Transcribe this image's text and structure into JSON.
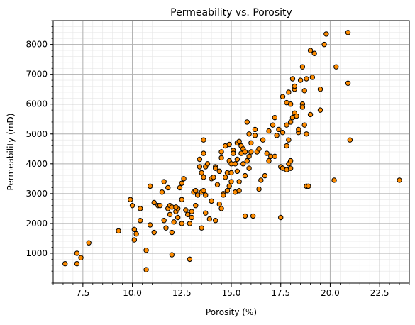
{
  "chart_data": {
    "type": "scatter",
    "title": "Permeability vs. Porosity",
    "xlabel": "Porosity (%)",
    "ylabel": "Permeability (mD)",
    "xlim": [
      6.0,
      24.0
    ],
    "ylim": [
      0,
      8800
    ],
    "xticks": [
      7.5,
      10.0,
      12.5,
      15.0,
      17.5,
      20.0,
      22.5
    ],
    "xtick_labels": [
      "7.5",
      "10.0",
      "12.5",
      "15.0",
      "17.5",
      "20.0",
      "22.5"
    ],
    "yticks": [
      1000,
      2000,
      3000,
      4000,
      5000,
      6000,
      7000,
      8000
    ],
    "ytick_labels": [
      "1000",
      "2000",
      "3000",
      "4000",
      "5000",
      "6000",
      "7000",
      "8000"
    ],
    "grid": true,
    "minor_grid": true,
    "marker_color": "#ff8c00",
    "marker_edge_color": "#000000",
    "series": [
      {
        "points": [
          [
            6.6,
            650
          ],
          [
            7.2,
            650
          ],
          [
            7.2,
            1000
          ],
          [
            7.4,
            850
          ],
          [
            7.8,
            1350
          ],
          [
            9.3,
            1750
          ],
          [
            9.9,
            2800
          ],
          [
            10.0,
            2600
          ],
          [
            10.1,
            1800
          ],
          [
            10.1,
            1450
          ],
          [
            10.2,
            1650
          ],
          [
            10.4,
            2500
          ],
          [
            10.4,
            2100
          ],
          [
            10.7,
            1100
          ],
          [
            10.7,
            450
          ],
          [
            10.9,
            3250
          ],
          [
            10.9,
            1950
          ],
          [
            11.1,
            1700
          ],
          [
            11.1,
            2700
          ],
          [
            11.3,
            2600
          ],
          [
            11.5,
            3050
          ],
          [
            11.6,
            3400
          ],
          [
            11.6,
            2100
          ],
          [
            11.7,
            1850
          ],
          [
            11.8,
            2500
          ],
          [
            11.8,
            3200
          ],
          [
            11.9,
            2600
          ],
          [
            11.9,
            2300
          ],
          [
            12.0,
            2550
          ],
          [
            12.0,
            1700
          ],
          [
            12.0,
            950
          ],
          [
            12.1,
            2050
          ],
          [
            12.2,
            2400
          ],
          [
            12.3,
            2500
          ],
          [
            12.3,
            2200
          ],
          [
            12.4,
            3200
          ],
          [
            12.5,
            3350
          ],
          [
            12.5,
            2000
          ],
          [
            12.5,
            2800
          ],
          [
            12.6,
            3500
          ],
          [
            12.7,
            2450
          ],
          [
            12.8,
            2300
          ],
          [
            12.9,
            2000
          ],
          [
            12.9,
            800
          ],
          [
            13.0,
            2400
          ],
          [
            13.0,
            2200
          ],
          [
            13.1,
            3050
          ],
          [
            13.2,
            3100
          ],
          [
            13.2,
            2600
          ],
          [
            13.3,
            2950
          ],
          [
            13.4,
            3900
          ],
          [
            13.4,
            4150
          ],
          [
            13.5,
            3700
          ],
          [
            13.5,
            3050
          ],
          [
            13.5,
            1850
          ],
          [
            13.6,
            4800
          ],
          [
            13.6,
            3550
          ],
          [
            13.6,
            3100
          ],
          [
            13.6,
            4350
          ],
          [
            13.7,
            2350
          ],
          [
            13.7,
            3900
          ],
          [
            13.8,
            4000
          ],
          [
            13.9,
            2150
          ],
          [
            14.0,
            3500
          ],
          [
            14.0,
            2750
          ],
          [
            14.1,
            3550
          ],
          [
            14.2,
            3900
          ],
          [
            14.2,
            2100
          ],
          [
            14.3,
            3300
          ],
          [
            14.4,
            2650
          ],
          [
            14.4,
            3750
          ],
          [
            14.5,
            4200
          ],
          [
            14.5,
            4400
          ],
          [
            14.5,
            2500
          ],
          [
            14.6,
            3000
          ],
          [
            14.6,
            2950
          ],
          [
            14.7,
            3550
          ],
          [
            14.7,
            4600
          ],
          [
            14.8,
            3700
          ],
          [
            14.8,
            3100
          ],
          [
            14.9,
            4650
          ],
          [
            14.9,
            4100
          ],
          [
            15.0,
            4000
          ],
          [
            15.0,
            3700
          ],
          [
            15.0,
            3400
          ],
          [
            15.1,
            4450
          ],
          [
            15.1,
            4350
          ],
          [
            15.2,
            4000
          ],
          [
            15.2,
            3050
          ],
          [
            15.3,
            4700
          ],
          [
            15.3,
            4150
          ],
          [
            15.3,
            3750
          ],
          [
            15.4,
            3100
          ],
          [
            15.4,
            3400
          ],
          [
            15.5,
            4350
          ],
          [
            15.5,
            4600
          ],
          [
            15.6,
            4500
          ],
          [
            15.6,
            4000
          ],
          [
            15.7,
            4400
          ],
          [
            15.7,
            3600
          ],
          [
            15.7,
            2250
          ],
          [
            15.8,
            5400
          ],
          [
            15.8,
            4100
          ],
          [
            15.9,
            4250
          ],
          [
            15.9,
            3850
          ],
          [
            16.0,
            4700
          ],
          [
            16.0,
            4400
          ],
          [
            16.1,
            2250
          ],
          [
            16.2,
            5150
          ],
          [
            16.2,
            4950
          ],
          [
            16.3,
            4400
          ],
          [
            16.4,
            4500
          ],
          [
            16.5,
            3450
          ],
          [
            16.6,
            4800
          ],
          [
            16.7,
            3600
          ],
          [
            16.8,
            4350
          ],
          [
            16.9,
            4100
          ],
          [
            17.0,
            4250
          ],
          [
            17.1,
            5300
          ],
          [
            17.2,
            5550
          ],
          [
            17.3,
            4950
          ],
          [
            17.4,
            5150
          ],
          [
            17.5,
            3900
          ],
          [
            17.6,
            3850
          ],
          [
            17.8,
            4600
          ],
          [
            17.8,
            3800
          ],
          [
            17.9,
            4800
          ],
          [
            17.9,
            4000
          ],
          [
            18.0,
            3850
          ],
          [
            18.0,
            4100
          ],
          [
            18.1,
            5550
          ],
          [
            18.2,
            5700
          ],
          [
            18.2,
            6500
          ],
          [
            18.3,
            5600
          ],
          [
            18.4,
            5050
          ],
          [
            18.4,
            5150
          ],
          [
            18.5,
            6800
          ],
          [
            18.6,
            6000
          ],
          [
            18.6,
            5900
          ],
          [
            18.6,
            7250
          ],
          [
            18.7,
            5300
          ],
          [
            18.7,
            6450
          ],
          [
            18.8,
            6850
          ],
          [
            18.8,
            5000
          ],
          [
            18.8,
            3250
          ],
          [
            18.9,
            3250
          ],
          [
            19.0,
            5650
          ],
          [
            19.0,
            7800
          ],
          [
            19.1,
            6900
          ],
          [
            19.2,
            7700
          ],
          [
            19.5,
            6500
          ],
          [
            19.5,
            5800
          ],
          [
            19.7,
            8000
          ],
          [
            19.8,
            8350
          ],
          [
            20.2,
            3450
          ],
          [
            20.3,
            7250
          ],
          [
            20.9,
            6700
          ],
          [
            20.9,
            8400
          ],
          [
            21.0,
            4800
          ],
          [
            23.5,
            3450
          ],
          [
            17.6,
            6250
          ],
          [
            17.8,
            6050
          ],
          [
            17.9,
            6400
          ],
          [
            18.0,
            6000
          ],
          [
            18.1,
            6850
          ],
          [
            18.2,
            6600
          ],
          [
            17.6,
            5050
          ],
          [
            17.2,
            4250
          ],
          [
            16.9,
            5100
          ],
          [
            17.8,
            5300
          ],
          [
            18.0,
            5400
          ],
          [
            17.5,
            2200
          ],
          [
            16.4,
            3150
          ],
          [
            15.9,
            5000
          ],
          [
            13.7,
            2950
          ],
          [
            14.2,
            3850
          ],
          [
            14.9,
            3250
          ],
          [
            15.4,
            4750
          ],
          [
            12.2,
            2550
          ],
          [
            11.4,
            2600
          ]
        ]
      }
    ]
  }
}
